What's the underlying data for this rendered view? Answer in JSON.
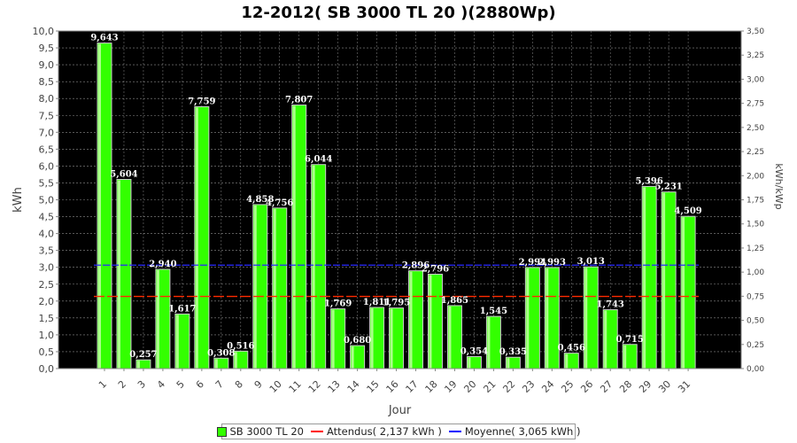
{
  "chart_data": {
    "type": "bar",
    "title": "12-2012( SB 3000 TL 20 )(2880Wp)",
    "xlabel": "Jour",
    "ylabel": "kWh",
    "ylabel_right": "kWh/kWp",
    "categories": [
      "1",
      "2",
      "3",
      "4",
      "5",
      "6",
      "7",
      "8",
      "9",
      "10",
      "11",
      "12",
      "13",
      "14",
      "15",
      "16",
      "17",
      "18",
      "19",
      "20",
      "21",
      "22",
      "23",
      "24",
      "25",
      "26",
      "27",
      "28",
      "29",
      "30",
      "31"
    ],
    "series": [
      {
        "name": "SB 3000 TL 20",
        "color": "#33ff00",
        "values": [
          9.643,
          5.604,
          0.257,
          2.94,
          1.617,
          7.759,
          0.308,
          0.516,
          4.858,
          4.756,
          7.807,
          6.044,
          1.769,
          0.68,
          1.811,
          1.795,
          2.896,
          2.796,
          1.865,
          0.354,
          1.545,
          0.335,
          2.994,
          2.993,
          0.456,
          3.013,
          1.743,
          0.715,
          5.396,
          5.231,
          4.509
        ],
        "labels": [
          "9,643",
          "5,604",
          "0,257",
          "2,940",
          "1,617",
          "7,759",
          "0,308",
          "0,516",
          "4,858",
          "4,756",
          "7,807",
          "6,044",
          "1,769",
          "0,680",
          "1,811",
          "1,795",
          "2,896",
          "2,796",
          "1,865",
          "0,354",
          "1,545",
          "0,335",
          "2,994",
          "2,993",
          "0,456",
          "3,013",
          "1,743",
          "0,715",
          "5,396",
          "5,231",
          "4,509"
        ]
      }
    ],
    "reference_lines": [
      {
        "name": "Attendus( 2,137 kWh )",
        "value": 2.137,
        "color": "#ff2a00",
        "style": "dashed"
      },
      {
        "name": "Moyenne( 3,065 kWh )",
        "value": 3.065,
        "color": "#2a2aff",
        "style": "dashed"
      }
    ],
    "ylim": [
      0,
      10
    ],
    "yticks": [
      "0,0",
      "0,5",
      "1,0",
      "1,5",
      "2,0",
      "2,5",
      "3,0",
      "3,5",
      "4,0",
      "4,5",
      "5,0",
      "5,5",
      "6,0",
      "6,5",
      "7,0",
      "7,5",
      "8,0",
      "8,5",
      "9,0",
      "9,5",
      "10,0"
    ],
    "ylim_right": [
      0,
      3.5
    ],
    "yticks_right": [
      "0,00",
      "0,25",
      "0,50",
      "0,75",
      "1,00",
      "1,25",
      "1,50",
      "1,75",
      "2,00",
      "2,25",
      "2,50",
      "2,75",
      "3,00",
      "3,25",
      "3,50"
    ],
    "background": "#000000",
    "grid": true,
    "legend_position": "bottom"
  },
  "legend": {
    "items": [
      {
        "label": "SB 3000 TL 20",
        "color": "#33ff00",
        "kind": "box"
      },
      {
        "label": "Attendus( 2,137 kWh )",
        "color": "#ff0000",
        "kind": "line"
      },
      {
        "label": "Moyenne( 3,065 kWh )",
        "color": "#0000ff",
        "kind": "line"
      }
    ]
  }
}
